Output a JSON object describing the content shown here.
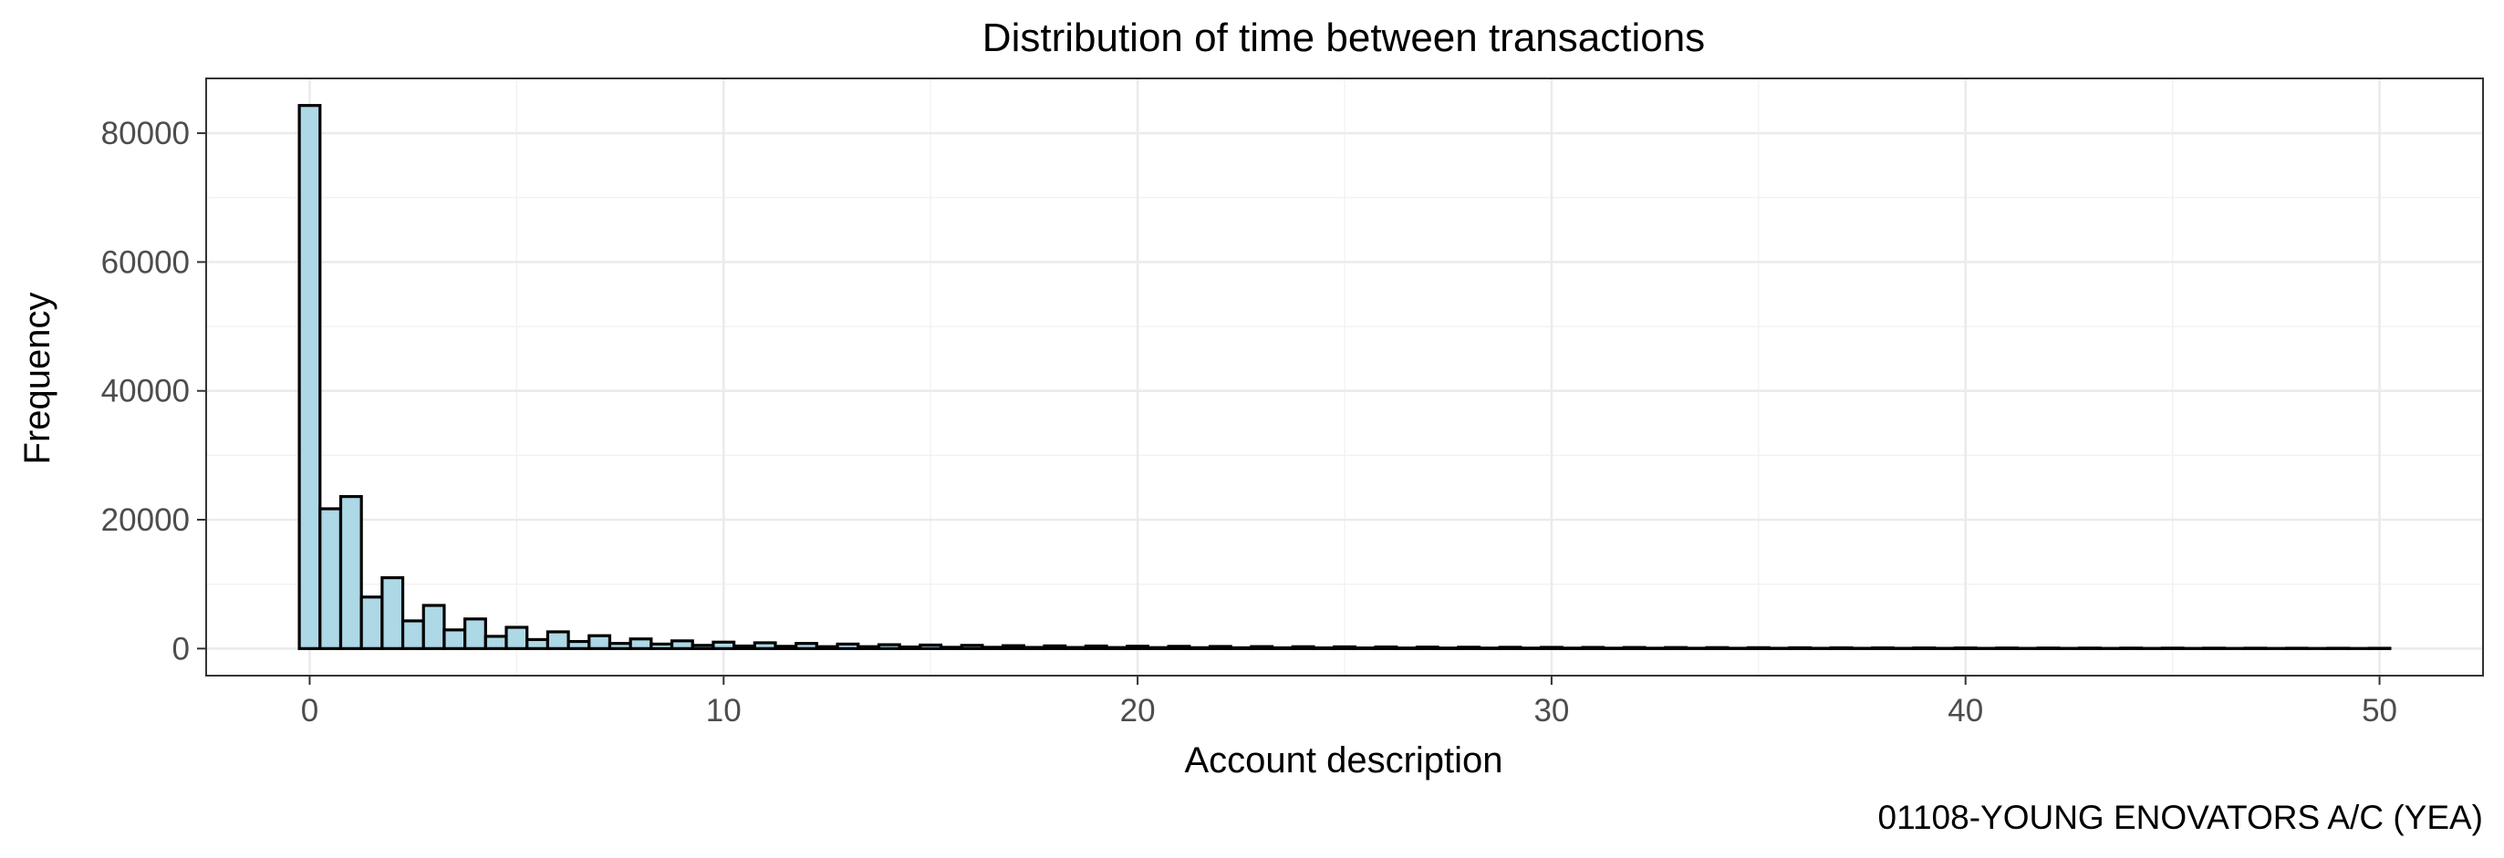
{
  "chart_data": {
    "type": "bar",
    "title": "Distribution of time between transactions",
    "xlabel": "Account description",
    "ylabel": "Frequency",
    "caption": "01108-YOUNG ENOVATORS A/C (YEA)",
    "xlim": [
      -2.5,
      52.5
    ],
    "ylim": [
      -4200,
      88500
    ],
    "x_ticks": [
      0,
      10,
      20,
      30,
      40,
      50
    ],
    "x_tick_labels": [
      "0",
      "10",
      "20",
      "30",
      "40",
      "50"
    ],
    "y_ticks": [
      0,
      20000,
      40000,
      60000,
      80000
    ],
    "y_tick_labels": [
      "0",
      "20000",
      "40000",
      "60000",
      "80000"
    ],
    "grid": true,
    "bin_width": 0.5,
    "bin_start": -0.25,
    "bar_fill": "#add8e6",
    "bar_stroke": "#000000",
    "values": [
      84300,
      21700,
      23600,
      8000,
      11000,
      4300,
      6700,
      2900,
      4600,
      1900,
      3300,
      1400,
      2600,
      1100,
      2000,
      800,
      1500,
      700,
      1200,
      500,
      1000,
      400,
      900,
      350,
      800,
      300,
      700,
      300,
      600,
      250,
      550,
      200,
      500,
      200,
      450,
      180,
      420,
      170,
      400,
      160,
      370,
      150,
      350,
      140,
      330,
      130,
      310,
      120,
      290,
      110,
      270,
      100,
      250,
      90,
      230,
      85,
      210,
      80,
      200,
      75,
      190,
      70,
      180,
      65,
      170,
      60,
      160,
      55,
      150,
      50,
      140,
      48,
      130,
      46,
      120,
      44,
      110,
      42,
      100,
      40,
      95,
      38,
      90,
      36,
      85,
      34,
      80,
      32,
      75,
      30,
      70,
      28,
      65,
      26,
      60,
      24,
      55,
      22,
      50,
      20,
      45
    ]
  }
}
